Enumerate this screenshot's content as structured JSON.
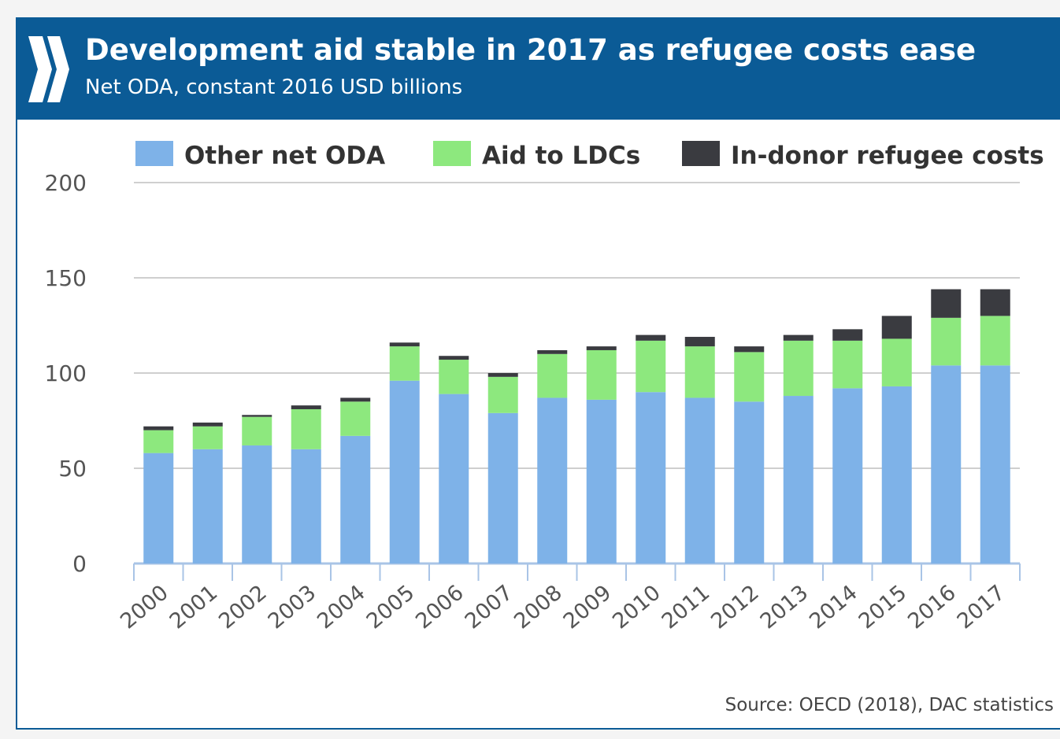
{
  "header": {
    "title": "Development aid stable in 2017 as refugee costs ease",
    "subtitle": "Net ODA, constant 2016 USD billions"
  },
  "source": "Source: OECD (2018), DAC statistics",
  "colors": {
    "header_bg": "#0b5b96",
    "grid": "#cfcfcf",
    "axis": "#a9c4e6"
  },
  "logo_icon": "double-chevron-icon",
  "chart_data": {
    "type": "bar",
    "stacked": true,
    "categories": [
      "2000",
      "2001",
      "2002",
      "2003",
      "2004",
      "2005",
      "2006",
      "2007",
      "2008",
      "2009",
      "2010",
      "2011",
      "2012",
      "2013",
      "2014",
      "2015",
      "2016",
      "2017"
    ],
    "series": [
      {
        "name": "Other net ODA",
        "color": "#7eb2e8",
        "values": [
          58,
          60,
          62,
          60,
          67,
          96,
          89,
          79,
          87,
          86,
          90,
          87,
          85,
          88,
          92,
          93,
          104,
          104
        ]
      },
      {
        "name": "Aid to LDCs",
        "color": "#8de87e",
        "values": [
          12,
          12,
          15,
          21,
          18,
          18,
          18,
          19,
          23,
          26,
          27,
          27,
          26,
          29,
          25,
          25,
          25,
          26
        ]
      },
      {
        "name": "In-donor refugee costs",
        "color": "#3a3b40",
        "values": [
          2,
          2,
          1,
          2,
          2,
          2,
          2,
          2,
          2,
          2,
          3,
          5,
          3,
          3,
          6,
          12,
          15,
          14
        ]
      }
    ],
    "yticks": [
      0,
      50,
      100,
      150,
      200
    ],
    "ylim": [
      0,
      200
    ],
    "grid": true,
    "legend_position": "top"
  }
}
